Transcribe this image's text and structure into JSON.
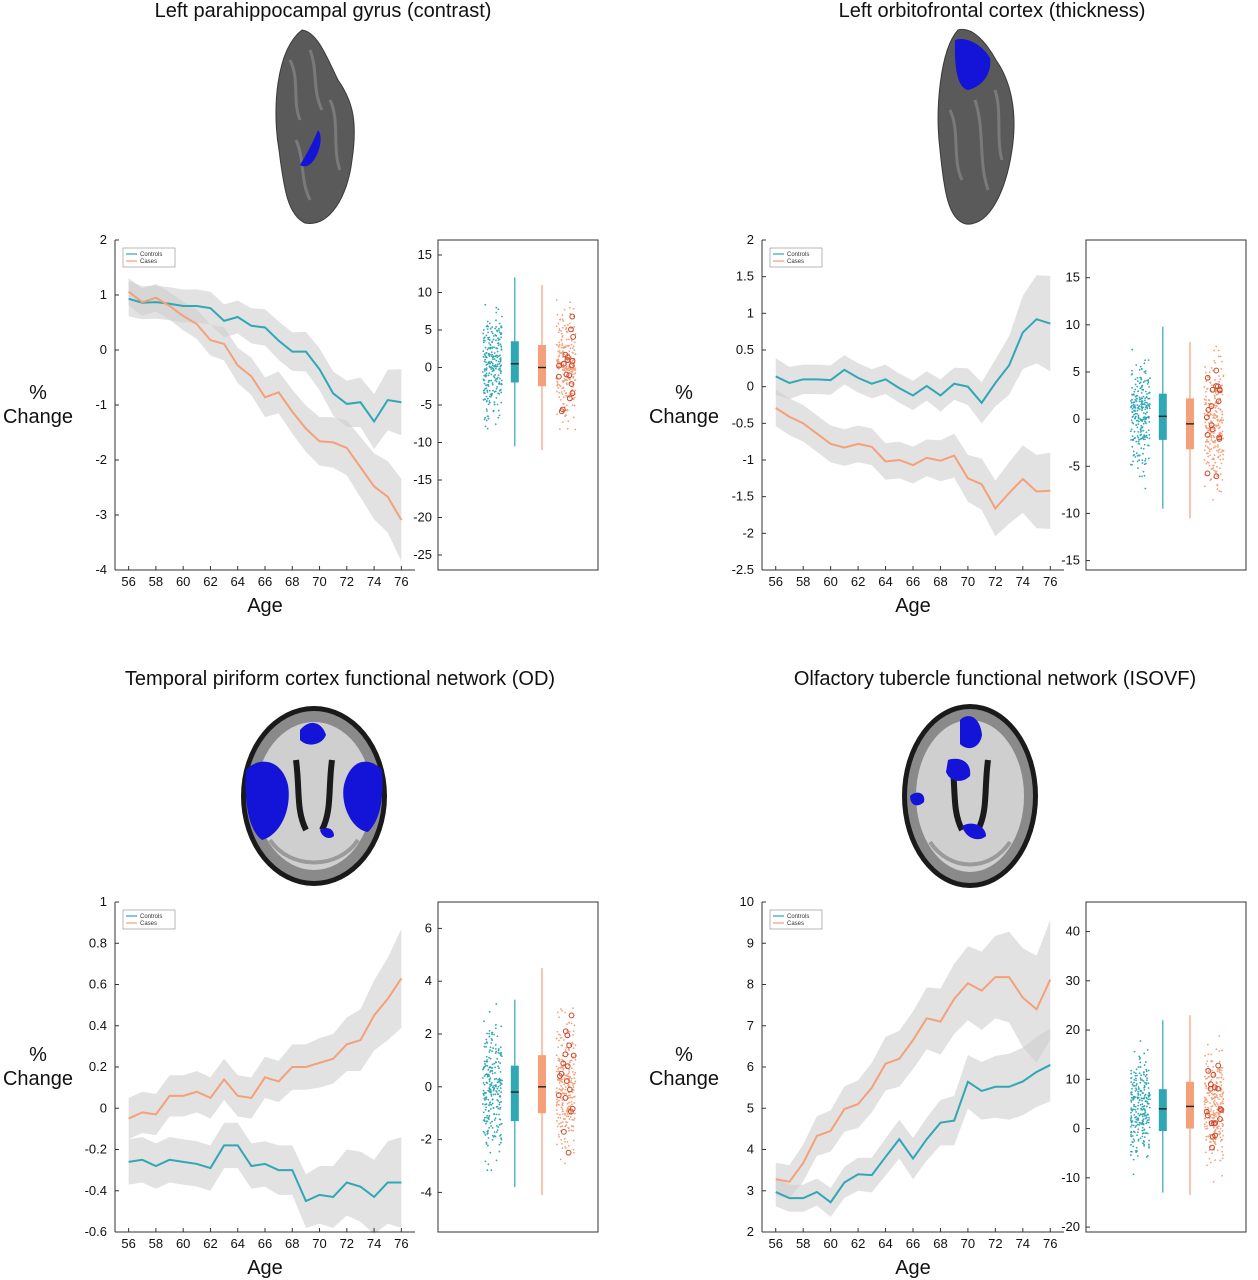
{
  "colors": {
    "controls": "#2fa7b5",
    "cases": "#f4a07a",
    "cases_dark": "#c9452b",
    "band": "#cfcfcf",
    "brain_surface": "#5a5a5a",
    "brain_region": "#1414d8"
  },
  "chart_data": [
    {
      "type": "line",
      "title": "Left parahippocampal gyrus (contrast)",
      "xlabel": "Age",
      "ylabel": "% Change",
      "x": [
        56,
        57,
        58,
        59,
        60,
        61,
        62,
        63,
        64,
        65,
        66,
        67,
        68,
        69,
        70,
        71,
        72,
        73,
        74,
        75,
        76
      ],
      "xticks": [
        56,
        58,
        60,
        62,
        64,
        66,
        68,
        70,
        72,
        74,
        76
      ],
      "xlim": [
        55,
        77
      ],
      "ylim": [
        -4,
        2
      ],
      "yticks": [
        2,
        1,
        0,
        -1,
        -2,
        -3,
        -4
      ],
      "legend": [
        "Controls",
        "Cases"
      ],
      "legend_position": "top-left",
      "grid": false,
      "series": [
        {
          "name": "Controls",
          "values": [
            0.93,
            0.86,
            0.87,
            0.84,
            0.8,
            0.8,
            0.76,
            0.53,
            0.6,
            0.44,
            0.41,
            0.17,
            -0.03,
            -0.03,
            -0.35,
            -0.79,
            -0.98,
            -0.95,
            -1.3,
            -0.91,
            -0.95
          ],
          "band_half_width": [
            0.32,
            0.3,
            0.3,
            0.3,
            0.3,
            0.3,
            0.3,
            0.3,
            0.3,
            0.32,
            0.33,
            0.35,
            0.35,
            0.36,
            0.38,
            0.4,
            0.42,
            0.45,
            0.5,
            0.55,
            0.6
          ]
        },
        {
          "name": "Cases",
          "values": [
            1.06,
            0.87,
            0.95,
            0.8,
            0.62,
            0.47,
            0.18,
            0.11,
            -0.28,
            -0.48,
            -0.86,
            -0.77,
            -1.12,
            -1.43,
            -1.66,
            -1.68,
            -1.78,
            -2.13,
            -2.48,
            -2.67,
            -3.09
          ],
          "band_half_width": [
            0.25,
            0.25,
            0.25,
            0.25,
            0.26,
            0.27,
            0.28,
            0.3,
            0.32,
            0.34,
            0.36,
            0.38,
            0.4,
            0.42,
            0.44,
            0.46,
            0.5,
            0.55,
            0.6,
            0.65,
            0.75
          ]
        }
      ],
      "boxplot": {
        "ylim": [
          -27,
          17
        ],
        "yticks": [
          15,
          10,
          5,
          0,
          -5,
          -10,
          -15,
          -20,
          -25
        ],
        "groups": [
          {
            "name": "Controls",
            "median": 0.5,
            "q1": -2,
            "q3": 3.5,
            "whisker_low": -10.5,
            "whisker_high": 12
          },
          {
            "name": "Cases",
            "median": 0,
            "q1": -2.5,
            "q3": 3,
            "whisker_low": -11,
            "whisker_high": 11
          }
        ]
      }
    },
    {
      "type": "line",
      "title": "Left orbitofrontal cortex (thickness)",
      "xlabel": "Age",
      "ylabel": "% Change",
      "x": [
        56,
        57,
        58,
        59,
        60,
        61,
        62,
        63,
        64,
        65,
        66,
        67,
        68,
        69,
        70,
        71,
        72,
        73,
        74,
        75,
        76
      ],
      "xticks": [
        56,
        58,
        60,
        62,
        64,
        66,
        68,
        70,
        72,
        74,
        76
      ],
      "xlim": [
        55,
        77
      ],
      "ylim": [
        -2.5,
        2
      ],
      "yticks": [
        2,
        1.5,
        1,
        0.5,
        0,
        -0.5,
        -1,
        -1.5,
        -2,
        -2.5
      ],
      "legend": [
        "Controls",
        "Cases"
      ],
      "legend_position": "top-left",
      "grid": false,
      "series": [
        {
          "name": "Controls",
          "values": [
            0.14,
            0.05,
            0.1,
            0.1,
            0.09,
            0.23,
            0.12,
            0.04,
            0.1,
            -0.02,
            -0.12,
            0.01,
            -0.12,
            0.04,
            0.0,
            -0.22,
            0.05,
            0.29,
            0.74,
            0.92,
            0.86
          ],
          "band_half_width": [
            0.25,
            0.22,
            0.2,
            0.2,
            0.2,
            0.2,
            0.2,
            0.2,
            0.2,
            0.2,
            0.2,
            0.2,
            0.22,
            0.22,
            0.25,
            0.28,
            0.32,
            0.4,
            0.5,
            0.6,
            0.65
          ]
        },
        {
          "name": "Cases",
          "values": [
            -0.29,
            -0.41,
            -0.5,
            -0.64,
            -0.78,
            -0.83,
            -0.78,
            -0.82,
            -1.02,
            -1.0,
            -1.07,
            -0.97,
            -1.01,
            -0.94,
            -1.25,
            -1.33,
            -1.66,
            -1.45,
            -1.26,
            -1.43,
            -1.42
          ],
          "band_half_width": [
            0.25,
            0.25,
            0.25,
            0.25,
            0.25,
            0.25,
            0.25,
            0.25,
            0.25,
            0.25,
            0.25,
            0.25,
            0.28,
            0.3,
            0.32,
            0.35,
            0.38,
            0.42,
            0.46,
            0.5,
            0.52
          ]
        }
      ],
      "boxplot": {
        "ylim": [
          -16,
          19
        ],
        "yticks": [
          15,
          10,
          5,
          0,
          -5,
          -10,
          -15
        ],
        "groups": [
          {
            "name": "Controls",
            "median": 0.3,
            "q1": -2.2,
            "q3": 2.7,
            "whisker_low": -9.5,
            "whisker_high": 9.8
          },
          {
            "name": "Cases",
            "median": -0.5,
            "q1": -3.2,
            "q3": 2.2,
            "whisker_low": -10.5,
            "whisker_high": 8.2
          }
        ]
      }
    },
    {
      "type": "line",
      "title": "Temporal piriform cortex functional network (OD)",
      "xlabel": "Age",
      "ylabel": "% Change",
      "x": [
        56,
        57,
        58,
        59,
        60,
        61,
        62,
        63,
        64,
        65,
        66,
        67,
        68,
        69,
        70,
        71,
        72,
        73,
        74,
        75,
        76
      ],
      "xticks": [
        56,
        58,
        60,
        62,
        64,
        66,
        68,
        70,
        72,
        74,
        76
      ],
      "xlim": [
        55,
        77
      ],
      "ylim": [
        -0.6,
        1
      ],
      "yticks": [
        1,
        0.8,
        0.6,
        0.4,
        0.2,
        0,
        -0.2,
        -0.4,
        -0.6
      ],
      "legend": [
        "Controls",
        "Cases"
      ],
      "legend_position": "top-left",
      "grid": false,
      "series": [
        {
          "name": "Controls",
          "values": [
            -0.26,
            -0.25,
            -0.28,
            -0.25,
            -0.26,
            -0.27,
            -0.29,
            -0.18,
            -0.18,
            -0.28,
            -0.27,
            -0.3,
            -0.3,
            -0.45,
            -0.42,
            -0.43,
            -0.36,
            -0.38,
            -0.43,
            -0.36,
            -0.36
          ],
          "band_half_width": [
            0.11,
            0.11,
            0.11,
            0.11,
            0.11,
            0.11,
            0.11,
            0.11,
            0.11,
            0.11,
            0.11,
            0.12,
            0.12,
            0.13,
            0.14,
            0.15,
            0.16,
            0.17,
            0.18,
            0.2,
            0.22
          ]
        },
        {
          "name": "Cases",
          "values": [
            -0.05,
            -0.02,
            -0.03,
            0.06,
            0.06,
            0.08,
            0.05,
            0.14,
            0.06,
            0.05,
            0.15,
            0.13,
            0.2,
            0.2,
            0.22,
            0.24,
            0.31,
            0.33,
            0.45,
            0.53,
            0.63
          ],
          "band_half_width": [
            0.1,
            0.1,
            0.1,
            0.1,
            0.1,
            0.1,
            0.1,
            0.1,
            0.1,
            0.1,
            0.1,
            0.1,
            0.11,
            0.11,
            0.12,
            0.12,
            0.13,
            0.15,
            0.17,
            0.2,
            0.24
          ]
        }
      ],
      "boxplot": {
        "ylim": [
          -5.5,
          7
        ],
        "yticks": [
          6,
          4,
          2,
          0,
          -2,
          -4
        ],
        "groups": [
          {
            "name": "Controls",
            "median": -0.2,
            "q1": -1.3,
            "q3": 0.8,
            "whisker_low": -3.8,
            "whisker_high": 3.3
          },
          {
            "name": "Cases",
            "median": 0,
            "q1": -1,
            "q3": 1.2,
            "whisker_low": -4.1,
            "whisker_high": 4.5
          }
        ]
      }
    },
    {
      "type": "line",
      "title": "Olfactory tubercle functional network (ISOVF)",
      "xlabel": "Age",
      "ylabel": "% Change",
      "x": [
        56,
        57,
        58,
        59,
        60,
        61,
        62,
        63,
        64,
        65,
        66,
        67,
        68,
        69,
        70,
        71,
        72,
        73,
        74,
        75,
        76
      ],
      "xticks": [
        56,
        58,
        60,
        62,
        64,
        66,
        68,
        70,
        72,
        74,
        76
      ],
      "xlim": [
        55,
        77
      ],
      "ylim": [
        2,
        10
      ],
      "yticks": [
        10,
        9,
        8,
        7,
        6,
        5,
        4,
        3,
        2
      ],
      "legend": [
        "Controls",
        "Cases"
      ],
      "legend_position": "top-left",
      "grid": false,
      "series": [
        {
          "name": "Controls",
          "values": [
            2.97,
            2.82,
            2.82,
            2.97,
            2.72,
            3.2,
            3.4,
            3.38,
            3.82,
            4.25,
            3.78,
            4.25,
            4.65,
            4.7,
            5.64,
            5.42,
            5.52,
            5.52,
            5.65,
            5.88,
            6.05
          ],
          "band_half_width": [
            0.35,
            0.33,
            0.33,
            0.33,
            0.35,
            0.38,
            0.4,
            0.42,
            0.45,
            0.47,
            0.5,
            0.52,
            0.55,
            0.6,
            0.65,
            0.7,
            0.75,
            0.8,
            0.82,
            0.85,
            0.88
          ]
        },
        {
          "name": "Cases",
          "values": [
            3.28,
            3.22,
            3.67,
            4.33,
            4.45,
            4.98,
            5.1,
            5.5,
            6.08,
            6.2,
            6.65,
            7.18,
            7.1,
            7.65,
            8.03,
            7.85,
            8.18,
            8.18,
            7.68,
            7.4,
            8.12
          ],
          "band_half_width": [
            0.4,
            0.4,
            0.45,
            0.48,
            0.5,
            0.55,
            0.58,
            0.6,
            0.65,
            0.68,
            0.7,
            0.75,
            0.8,
            0.85,
            0.9,
            0.95,
            1.0,
            1.1,
            1.2,
            1.3,
            1.45
          ]
        }
      ],
      "boxplot": {
        "ylim": [
          -21,
          46
        ],
        "yticks": [
          40,
          30,
          20,
          10,
          0,
          -10,
          -20
        ],
        "groups": [
          {
            "name": "Controls",
            "median": 4,
            "q1": -0.5,
            "q3": 8,
            "whisker_low": -13,
            "whisker_high": 22
          },
          {
            "name": "Cases",
            "median": 4.5,
            "q1": 0,
            "q3": 9.5,
            "whisker_low": -13.5,
            "whisker_high": 23
          }
        ]
      }
    }
  ]
}
